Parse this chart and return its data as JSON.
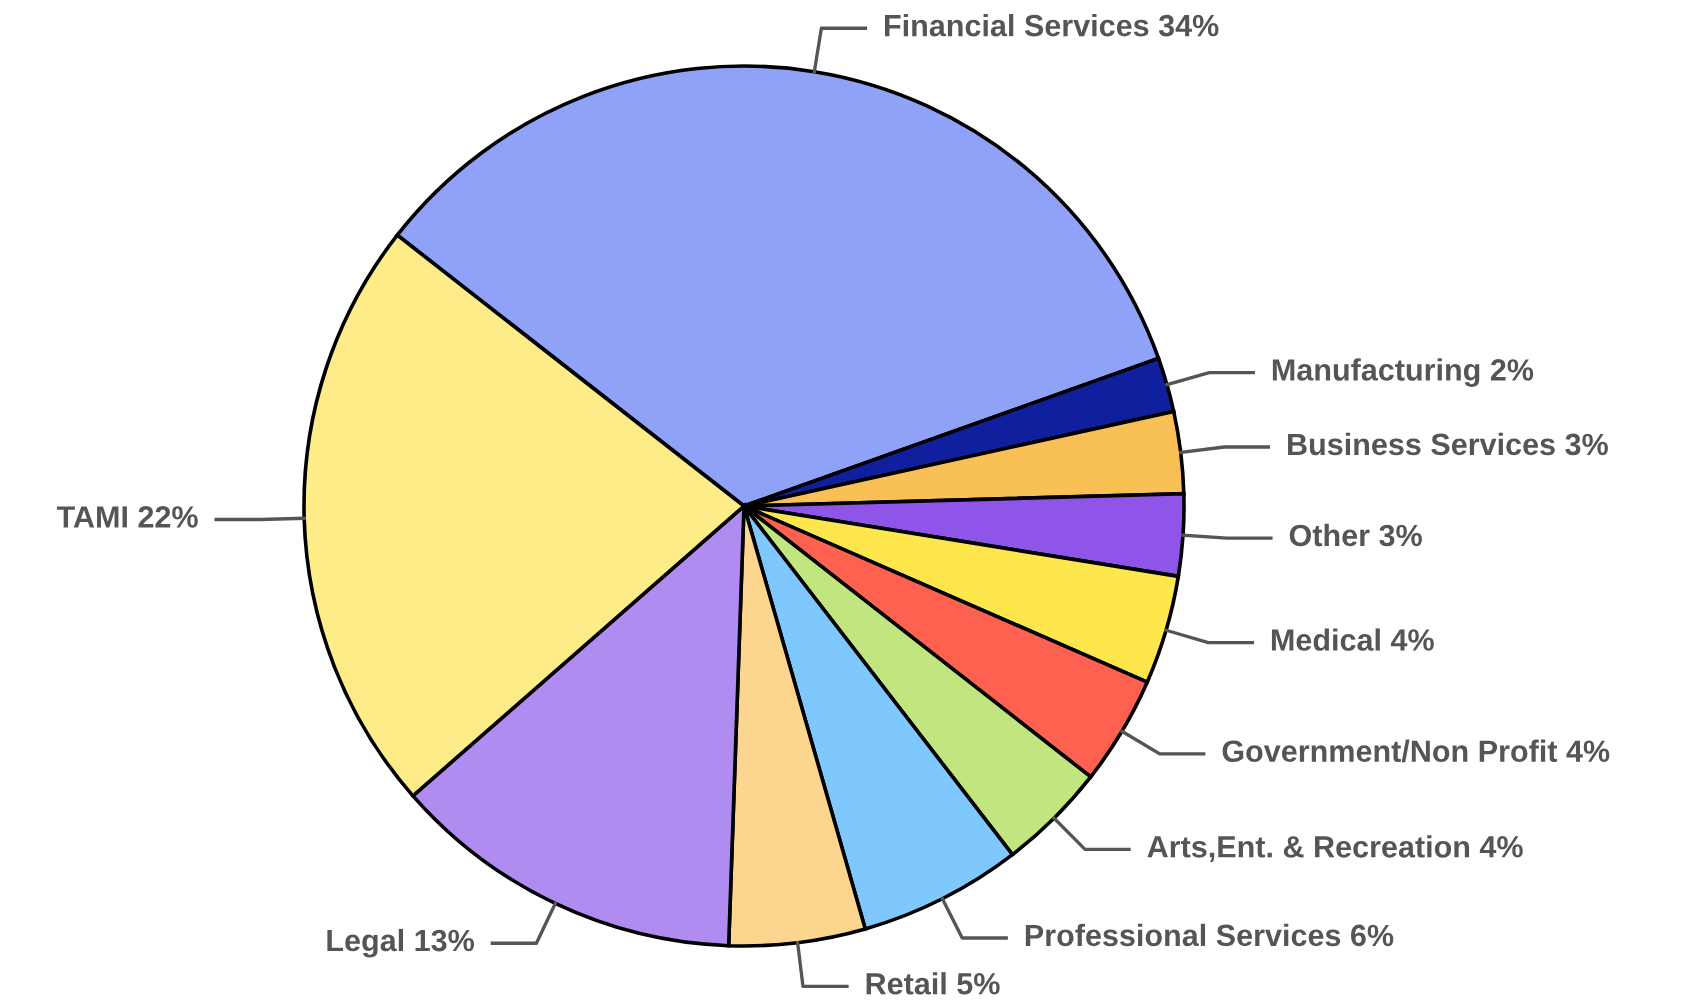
{
  "chart_data": {
    "type": "pie",
    "categories": [
      "Financial Services",
      "Manufacturing",
      "Business Services",
      "Other",
      "Medical",
      "Government/Non Profit",
      "Arts,Ent. & Recreation",
      "Professional Services",
      "Retail",
      "Legal",
      "TAMI"
    ],
    "values": [
      34,
      2,
      3,
      3,
      4,
      4,
      4,
      6,
      5,
      13,
      22
    ],
    "value_labels": [
      "34%",
      "2%",
      "3%",
      "3%",
      "4%",
      "4%",
      "4%",
      "6%",
      "5%",
      "13%",
      "22%"
    ],
    "colors": [
      "#8fa2f7",
      "#0f1f9e",
      "#f9c155",
      "#8e55e8",
      "#fde74c",
      "#ff6150",
      "#c2e67f",
      "#7fc8fd",
      "#fcd58e",
      "#b18cf0",
      "#feec88"
    ],
    "legend": false
  }
}
